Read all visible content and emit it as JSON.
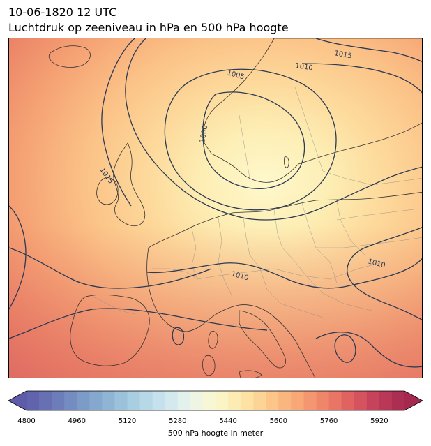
{
  "header": {
    "datetime": "10-06-1820 12 UTC",
    "subtitle": "Luchtdruk op zeeniveau in hPa en 500 hPa hoogte"
  },
  "map": {
    "region": "Europe",
    "filled_field": "500 hPa height",
    "contour_field": "sea level pressure",
    "isobar_labels": [
      "1015",
      "1010",
      "1005",
      "1000",
      "1015",
      "1010",
      "1010"
    ],
    "contour_color": "#2b3a55",
    "coastline_color": "#333333",
    "border_color": "#8a8a8a"
  },
  "colorbar": {
    "label": "500 hPa hoogte in meter",
    "min": 4800,
    "max": 6000,
    "step": 40,
    "extend": "both",
    "ticks": [
      "4800",
      "4960",
      "5120",
      "5280",
      "5440",
      "5600",
      "5760",
      "5920"
    ],
    "colormap": [
      "#5e5ca8",
      "#6a78b8",
      "#7a98c6",
      "#8fb4d4",
      "#a9cfe2",
      "#c8e3ee",
      "#e8f4ec",
      "#fbf8cf",
      "#fde7a8",
      "#fcc98a",
      "#f8a877",
      "#ef8569",
      "#de5f60",
      "#c23d5a",
      "#a5294f"
    ]
  }
}
